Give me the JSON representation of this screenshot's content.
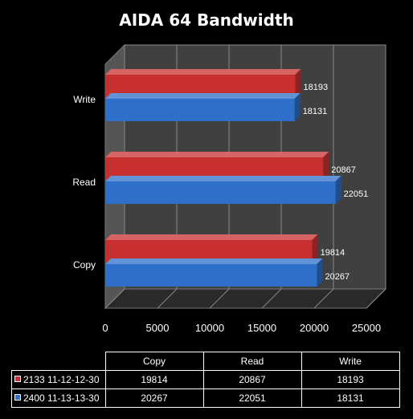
{
  "chart_data": {
    "type": "bar",
    "orientation": "horizontal",
    "title": "AIDA 64 Bandwidth",
    "categories": [
      "Copy",
      "Read",
      "Write"
    ],
    "series": [
      {
        "name": "2133 11-12-12-30",
        "color": "#c83030",
        "values": [
          19814,
          20867,
          18193
        ]
      },
      {
        "name": "2400 11-13-13-30",
        "color": "#2e6fc9",
        "values": [
          20267,
          22051,
          18131
        ]
      }
    ],
    "xlim": [
      0,
      25000
    ],
    "xticks": [
      "0",
      "5000",
      "10000",
      "15000",
      "20000",
      "25000"
    ],
    "grid": true,
    "legend": "data-table",
    "background": "#404040"
  }
}
